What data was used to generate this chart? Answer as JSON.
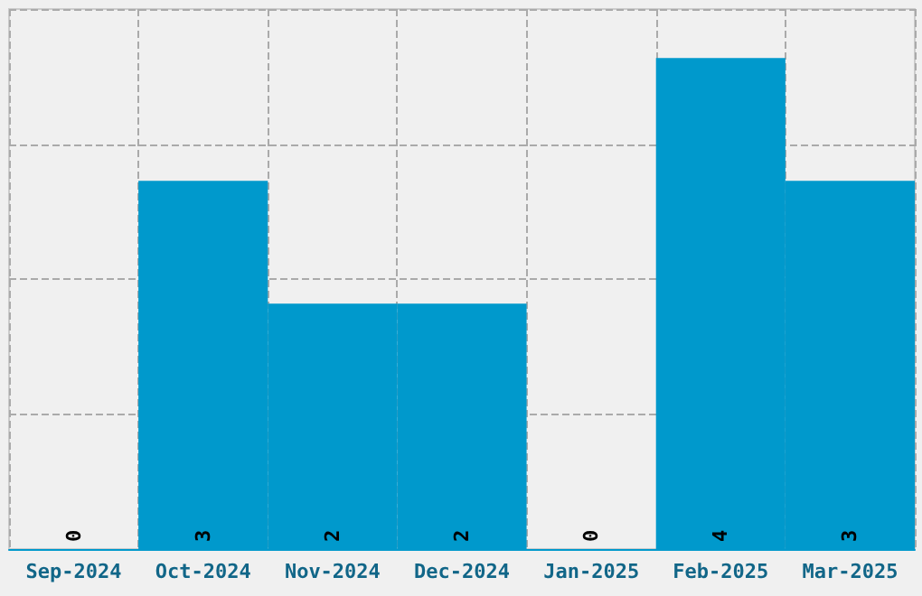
{
  "chart_data": {
    "type": "bar",
    "categories": [
      "Sep-2024",
      "Oct-2024",
      "Nov-2024",
      "Dec-2024",
      "Jan-2025",
      "Feb-2025",
      "Mar-2025"
    ],
    "values": [
      0,
      3,
      2,
      2,
      0,
      4,
      3
    ],
    "color": "#0099cc",
    "data_labels": true,
    "grid": true,
    "tick_labels": "x",
    "ylim": [
      0,
      4.4
    ],
    "yticks": [
      {
        "value": 0,
        "label": null
      },
      {
        "value": 1.1,
        "label": null
      },
      {
        "value": 2.2,
        "label": null
      },
      {
        "value": 3.3,
        "label": null
      },
      {
        "value": 4.4,
        "label": null
      }
    ]
  }
}
